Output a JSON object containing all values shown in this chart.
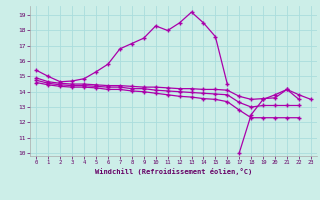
{
  "xlabel": "Windchill (Refroidissement éolien,°C)",
  "x": [
    0,
    1,
    2,
    3,
    4,
    5,
    6,
    7,
    8,
    9,
    10,
    11,
    12,
    13,
    14,
    15,
    16,
    17,
    18,
    19,
    20,
    21,
    22,
    23
  ],
  "line1": [
    15.4,
    15.0,
    14.65,
    14.7,
    14.85,
    15.3,
    15.8,
    16.8,
    17.15,
    17.5,
    18.3,
    18.0,
    18.5,
    19.2,
    18.5,
    17.6,
    14.5,
    null,
    null,
    null,
    null,
    null,
    null,
    null
  ],
  "line2_x": [
    17,
    18,
    19,
    20,
    21,
    22
  ],
  "line2_y": [
    10.0,
    12.5,
    13.5,
    13.8,
    14.15,
    13.5
  ],
  "line3": [
    14.9,
    14.65,
    14.55,
    14.5,
    14.5,
    14.45,
    14.4,
    14.4,
    14.35,
    14.3,
    14.3,
    14.25,
    14.2,
    14.2,
    14.15,
    14.15,
    14.1,
    13.7,
    13.5,
    13.55,
    13.6,
    14.15,
    13.8,
    13.5
  ],
  "line4": [
    14.75,
    14.55,
    14.45,
    14.4,
    14.4,
    14.35,
    14.3,
    14.3,
    14.2,
    14.2,
    14.1,
    14.05,
    14.0,
    13.95,
    13.9,
    13.85,
    13.8,
    13.3,
    13.0,
    13.1,
    13.1,
    13.1,
    13.1,
    null
  ],
  "line5": [
    14.6,
    14.45,
    14.35,
    14.3,
    14.3,
    14.25,
    14.15,
    14.15,
    14.05,
    14.0,
    13.9,
    13.8,
    13.7,
    13.65,
    13.55,
    13.5,
    13.35,
    12.8,
    12.3,
    12.3,
    12.3,
    12.3,
    12.3,
    null
  ],
  "ylim": [
    9.8,
    19.6
  ],
  "yticks": [
    10,
    11,
    12,
    13,
    14,
    15,
    16,
    17,
    18,
    19
  ],
  "bg_color": "#cceee8",
  "line_color": "#aa00aa",
  "grid_color": "#aadddd"
}
